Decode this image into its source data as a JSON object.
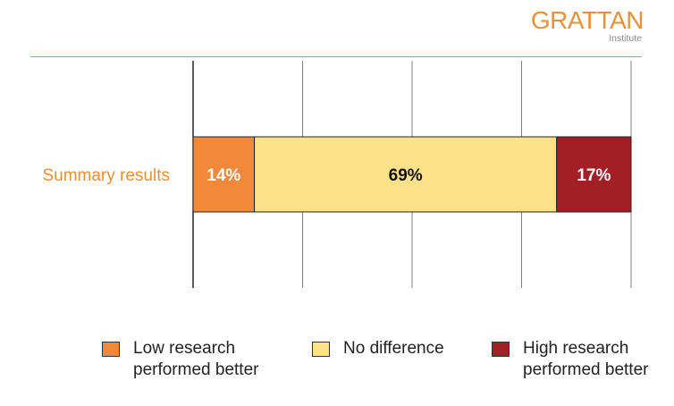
{
  "logo": {
    "name": "GRATTAN",
    "sub": "Institute"
  },
  "chart_data": {
    "type": "bar",
    "orientation": "horizontal",
    "stacked": true,
    "categories": [
      "Summary results"
    ],
    "xlim": [
      0,
      100
    ],
    "grid": true,
    "series": [
      {
        "name": "Low research\nperformed better",
        "values": [
          14
        ],
        "label": "14%",
        "color": "#f0893a"
      },
      {
        "name": "No difference",
        "values": [
          69
        ],
        "label": "69%",
        "color": "#fde289"
      },
      {
        "name": "High research\nperformed better",
        "values": [
          17
        ],
        "label": "17%",
        "color": "#a11f25"
      }
    ],
    "data_label_colors": [
      "#ffffff",
      "#111111",
      "#ffffff"
    ],
    "category_label_color": "#e8913a",
    "legend_position": "bottom"
  }
}
